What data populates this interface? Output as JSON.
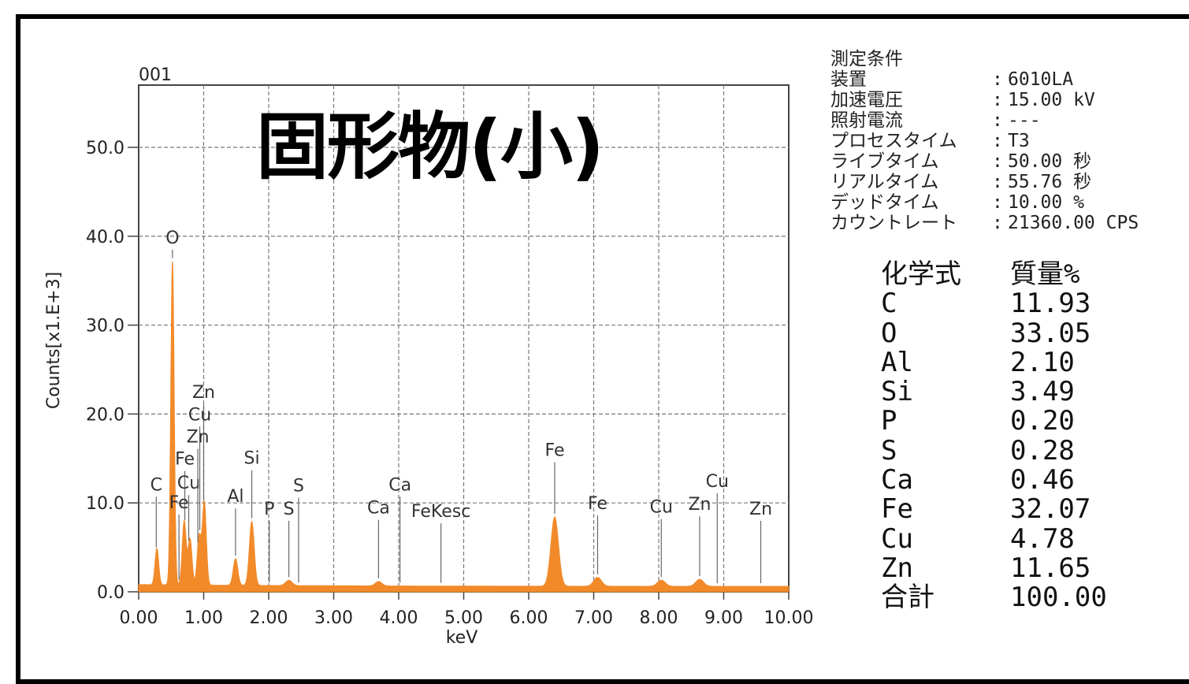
{
  "header": {
    "title": "固形物(小)"
  },
  "chart_data": {
    "type": "line",
    "id_label": "001",
    "xlabel": "keV",
    "ylabel": "Counts[x1.E+3]",
    "xlim": [
      0,
      10
    ],
    "ylim": [
      0,
      57
    ],
    "x_ticks": [
      "0.00",
      "1.00",
      "2.00",
      "3.00",
      "4.00",
      "5.00",
      "6.00",
      "7.00",
      "8.00",
      "9.00",
      "10.00"
    ],
    "y_ticks": [
      "0.0",
      "10.0",
      "20.0",
      "30.0",
      "40.0",
      "50.0"
    ],
    "grid": true,
    "fill_color": "#f28a2a",
    "series": [
      {
        "baseline": 0.6,
        "peaks": [
          {
            "e": 0.28,
            "h": 4.1,
            "w": 0.028
          },
          {
            "e": 0.52,
            "h": 36.4,
            "w": 0.026
          },
          {
            "e": 0.7,
            "h": 7.2,
            "w": 0.03
          },
          {
            "e": 0.79,
            "h": 5.2,
            "w": 0.03
          },
          {
            "e": 0.93,
            "h": 5.5,
            "w": 0.03
          },
          {
            "e": 1.01,
            "h": 9.3,
            "w": 0.03
          },
          {
            "e": 1.49,
            "h": 3.0,
            "w": 0.035
          },
          {
            "e": 1.74,
            "h": 7.2,
            "w": 0.037
          },
          {
            "e": 2.31,
            "h": 0.6,
            "w": 0.05
          },
          {
            "e": 3.69,
            "h": 0.5,
            "w": 0.05
          },
          {
            "e": 6.4,
            "h": 7.8,
            "w": 0.058
          },
          {
            "e": 7.06,
            "h": 1.0,
            "w": 0.06
          },
          {
            "e": 8.04,
            "h": 0.7,
            "w": 0.06
          },
          {
            "e": 8.63,
            "h": 0.8,
            "w": 0.06
          }
        ]
      }
    ],
    "annotations": [
      {
        "text": "O",
        "e": 0.52,
        "y": 39.2
      },
      {
        "text": "C",
        "e": 0.27,
        "y": 11.4
      },
      {
        "text": "Fe",
        "e": 0.71,
        "y": 14.3
      },
      {
        "text": "Cu",
        "e": 0.77,
        "y": 11.6
      },
      {
        "text": "Fe",
        "e": 0.62,
        "y": 9.4
      },
      {
        "text": "Zn",
        "e": 1.0,
        "y": 21.8
      },
      {
        "text": "Cu",
        "e": 0.94,
        "y": 19.3
      },
      {
        "text": "Zn",
        "e": 0.91,
        "y": 16.8
      },
      {
        "text": "Al",
        "e": 1.49,
        "y": 10.1
      },
      {
        "text": "Si",
        "e": 1.74,
        "y": 14.4
      },
      {
        "text": "P",
        "e": 2.01,
        "y": 8.7
      },
      {
        "text": "S",
        "e": 2.46,
        "y": 11.3
      },
      {
        "text": "S",
        "e": 2.31,
        "y": 8.7
      },
      {
        "text": "Ca",
        "e": 4.02,
        "y": 11.4
      },
      {
        "text": "Ca",
        "e": 3.69,
        "y": 8.8
      },
      {
        "text": "FeKesc",
        "e": 4.65,
        "y": 8.4
      },
      {
        "text": "Fe",
        "e": 6.4,
        "y": 15.3
      },
      {
        "text": "Fe",
        "e": 7.06,
        "y": 9.3
      },
      {
        "text": "Cu",
        "e": 8.04,
        "y": 8.9
      },
      {
        "text": "Zn",
        "e": 8.63,
        "y": 9.2
      },
      {
        "text": "Cu",
        "e": 8.9,
        "y": 11.8
      },
      {
        "text": "Zn",
        "e": 9.57,
        "y": 8.7
      }
    ]
  },
  "conditions": {
    "title": "測定条件",
    "rows": [
      {
        "key": "装置",
        "value": "6010LA"
      },
      {
        "key": "加速電圧",
        "value": "15.00 kV"
      },
      {
        "key": "照射電流",
        "value": "---"
      },
      {
        "key": "プロセスタイム",
        "value": "T3"
      },
      {
        "key": "ライブタイム",
        "value": "50.00 秒"
      },
      {
        "key": "リアルタイム",
        "value": "55.76 秒"
      },
      {
        "key": "デッドタイム",
        "value": "10.00 %"
      },
      {
        "key": "カウントレート",
        "value": "21360.00 CPS"
      }
    ]
  },
  "results": {
    "header_formula": "化学式",
    "header_mass": "質量%",
    "rows": [
      {
        "formula": "C",
        "mass": "11.93"
      },
      {
        "formula": "O",
        "mass": "33.05"
      },
      {
        "formula": "Al",
        "mass": "2.10"
      },
      {
        "formula": "Si",
        "mass": "3.49"
      },
      {
        "formula": "P",
        "mass": "0.20"
      },
      {
        "formula": "S",
        "mass": "0.28"
      },
      {
        "formula": "Ca",
        "mass": "0.46"
      },
      {
        "formula": "Fe",
        "mass": "32.07"
      },
      {
        "formula": "Cu",
        "mass": "4.78"
      },
      {
        "formula": "Zn",
        "mass": "11.65"
      }
    ],
    "total_label": "合計",
    "total_value": "100.00"
  }
}
